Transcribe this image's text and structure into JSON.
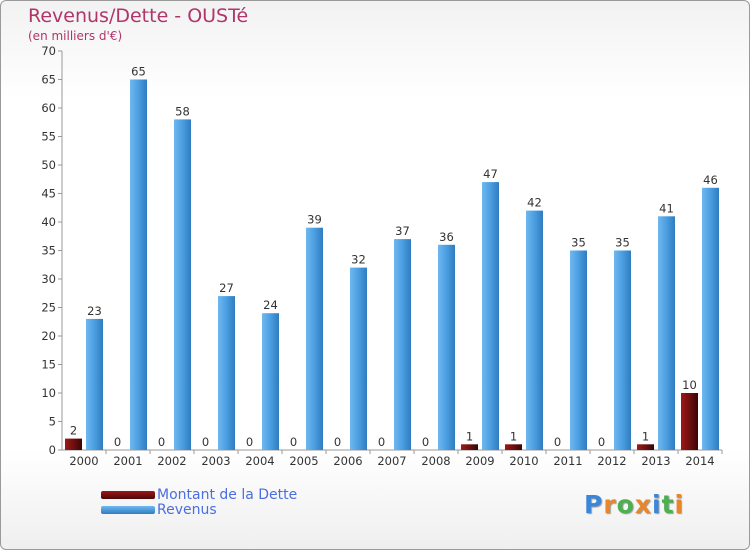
{
  "chart_data": {
    "type": "bar",
    "title": "Revenus/Dette - OUSTé",
    "subtitle": "(en milliers d'€)",
    "categories": [
      "2000",
      "2001",
      "2002",
      "2003",
      "2004",
      "2005",
      "2006",
      "2007",
      "2008",
      "2009",
      "2010",
      "2011",
      "2012",
      "2013",
      "2014"
    ],
    "series": [
      {
        "name": "Montant de la Dette",
        "color": "#6e0f0f",
        "values": [
          2,
          0,
          0,
          0,
          0,
          0,
          0,
          0,
          0,
          1,
          1,
          0,
          0,
          1,
          10
        ]
      },
      {
        "name": "Revenus",
        "color": "#4a9ee0",
        "values": [
          23,
          65,
          58,
          27,
          24,
          39,
          32,
          37,
          36,
          47,
          42,
          35,
          35,
          41,
          46
        ]
      }
    ],
    "yticks": [
      "0",
      "5",
      "10",
      "15",
      "20",
      "25",
      "30",
      "35",
      "40",
      "45",
      "50",
      "55",
      "60",
      "65",
      "70"
    ],
    "ylim": [
      0,
      70
    ],
    "grid": false,
    "legend_position": "bottom-left",
    "xlabel": "",
    "ylabel": ""
  },
  "watermark": {
    "text": "Proxiti",
    "colors": [
      "#3a86d8",
      "#e8862a",
      "#4caf50",
      "#e8862a",
      "#3a86d8",
      "#4caf50",
      "#e8862a"
    ]
  }
}
